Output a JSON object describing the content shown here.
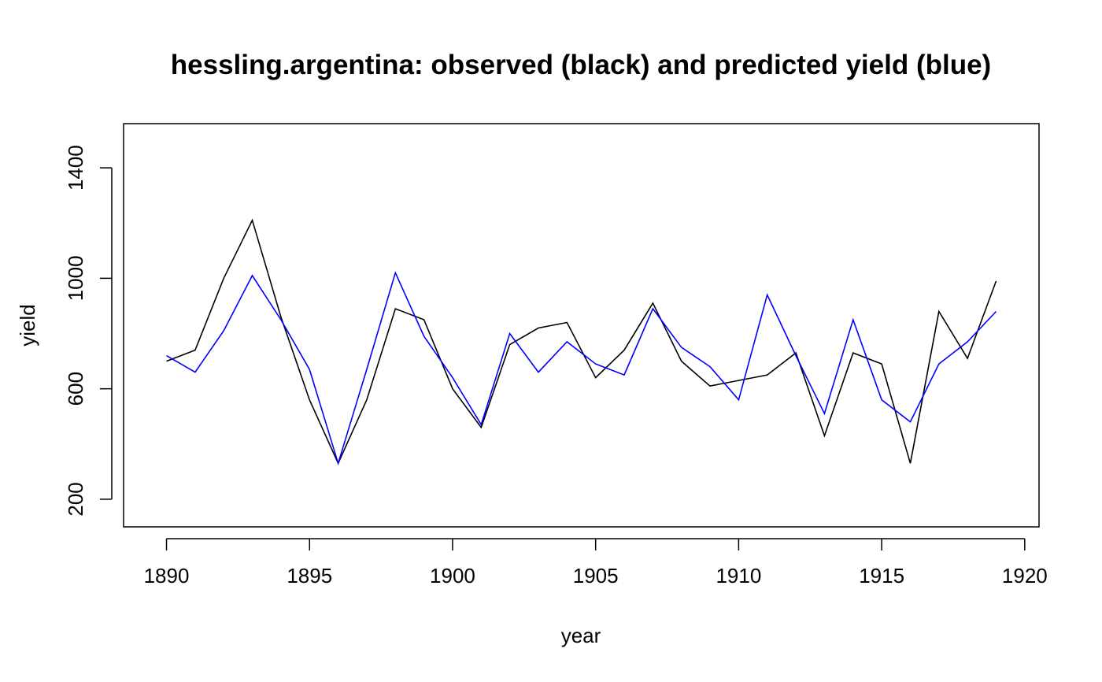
{
  "chart_data": {
    "type": "line",
    "title": "hessling.argentina: observed (black) and predicted yield (blue)",
    "xlabel": "year",
    "ylabel": "yield",
    "xlim": [
      1888.5,
      1920.5
    ],
    "ylim": [
      100,
      1560
    ],
    "x_ticks": [
      "1890",
      "1895",
      "1900",
      "1905",
      "1910",
      "1915",
      "1920"
    ],
    "y_ticks": [
      "200",
      "600",
      "1000",
      "1400"
    ],
    "grid": false,
    "legend": "none",
    "x": [
      1890,
      1891,
      1892,
      1893,
      1894,
      1895,
      1896,
      1897,
      1898,
      1899,
      1900,
      1901,
      1902,
      1903,
      1904,
      1905,
      1906,
      1907,
      1908,
      1909,
      1910,
      1911,
      1912,
      1913,
      1914,
      1915,
      1916,
      1917,
      1918,
      1919
    ],
    "series": [
      {
        "color": "#000000",
        "values": [
          700,
          740,
          1000,
          1210,
          860,
          560,
          330,
          560,
          890,
          850,
          600,
          460,
          760,
          820,
          840,
          640,
          740,
          910,
          700,
          610,
          630,
          650,
          730,
          430,
          730,
          690,
          330,
          880,
          710,
          990
        ]
      },
      {
        "color": "#0000ff",
        "values": [
          720,
          660,
          810,
          1010,
          850,
          670,
          330,
          670,
          1020,
          790,
          640,
          470,
          800,
          660,
          770,
          690,
          650,
          890,
          750,
          680,
          560,
          940,
          720,
          510,
          850,
          560,
          480,
          690,
          770,
          880
        ]
      }
    ]
  }
}
